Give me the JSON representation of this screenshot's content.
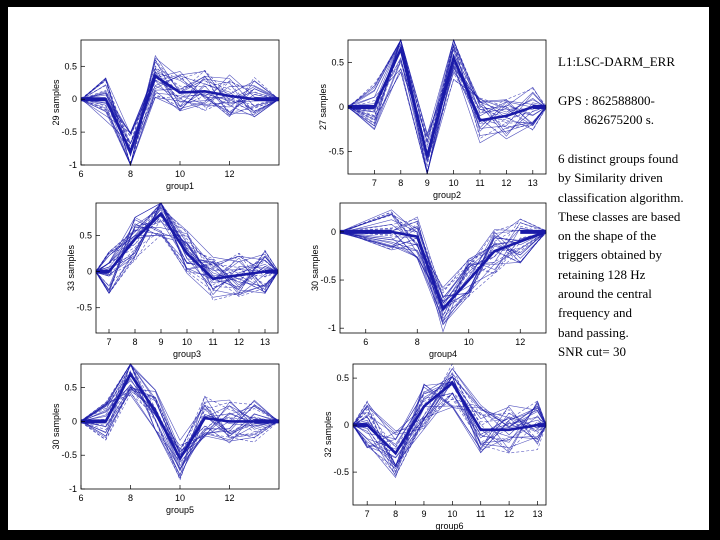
{
  "text": {
    "title": "L1:LSC-DARM_ERR",
    "gps": "GPS : 862588800-\n        862675200 s.",
    "description": "6 distinct groups found\nby Similarity driven\nclassification algorithm.\nThese classes are based\non the shape of the\ntriggers obtained by\nretaining 128 Hz\naround the central\nfrequency and\nband passing.\nSNR cut= 30"
  },
  "colors": {
    "line": "#1a1aa8",
    "background": "#ffffff",
    "frame": "#000000"
  },
  "chart_data": [
    {
      "type": "line",
      "xlabel": "group1",
      "ylabel": "29 samples",
      "xlim": [
        6,
        14
      ],
      "ylim": [
        -1,
        0.9
      ],
      "xticks": [
        6,
        8,
        10,
        12
      ],
      "yticks": [
        -1,
        -0.5,
        0,
        0.5
      ],
      "series_count": 29,
      "mean": [
        [
          6,
          0
        ],
        [
          7,
          0
        ],
        [
          8,
          -0.8
        ],
        [
          9,
          0.35
        ],
        [
          10,
          0.1
        ],
        [
          11,
          0.12
        ],
        [
          12,
          0.05
        ],
        [
          13,
          0
        ],
        [
          14,
          0
        ]
      ]
    },
    {
      "type": "line",
      "xlabel": "group2",
      "ylabel": "27 samples",
      "xlim": [
        6,
        13.5
      ],
      "ylim": [
        -0.75,
        0.75
      ],
      "xticks": [
        7,
        8,
        9,
        10,
        11,
        12,
        13
      ],
      "yticks": [
        -0.5,
        0,
        0.5
      ],
      "series_count": 27,
      "mean": [
        [
          6,
          0
        ],
        [
          7,
          0
        ],
        [
          8,
          0.65
        ],
        [
          9,
          -0.55
        ],
        [
          10,
          0.55
        ],
        [
          11,
          -0.15
        ],
        [
          12,
          -0.1
        ],
        [
          13,
          0
        ],
        [
          13.5,
          0
        ]
      ]
    },
    {
      "type": "line",
      "xlabel": "group3",
      "ylabel": "33 samples",
      "xlim": [
        6.5,
        13.5
      ],
      "ylim": [
        -0.85,
        0.95
      ],
      "xticks": [
        7,
        8,
        9,
        10,
        11,
        12,
        13
      ],
      "yticks": [
        -0.5,
        0,
        0.5
      ],
      "series_count": 33,
      "mean": [
        [
          6.5,
          0
        ],
        [
          7,
          0
        ],
        [
          8,
          0.45
        ],
        [
          9,
          0.8
        ],
        [
          10,
          0.25
        ],
        [
          11,
          -0.1
        ],
        [
          12,
          -0.05
        ],
        [
          13,
          0
        ],
        [
          13.5,
          0
        ]
      ]
    },
    {
      "type": "line",
      "xlabel": "group4",
      "ylabel": "30 samples",
      "xlim": [
        5,
        13
      ],
      "ylim": [
        -1.05,
        0.3
      ],
      "xticks": [
        6,
        8,
        10,
        12
      ],
      "yticks": [
        -1,
        -0.5,
        0
      ],
      "series_count": 30,
      "mean": [
        [
          5,
          0
        ],
        [
          7,
          0
        ],
        [
          8,
          -0.05
        ],
        [
          9,
          -0.8
        ],
        [
          10,
          -0.5
        ],
        [
          11,
          -0.2
        ],
        [
          12,
          -0.1
        ],
        [
          13,
          0
        ]
      ]
    },
    {
      "type": "line",
      "xlabel": "group5",
      "ylabel": "30 samples",
      "xlim": [
        6,
        14
      ],
      "ylim": [
        -1,
        0.85
      ],
      "xticks": [
        6,
        8,
        10,
        12
      ],
      "yticks": [
        -1,
        -0.5,
        0,
        0.5
      ],
      "series_count": 30,
      "mean": [
        [
          6,
          0
        ],
        [
          7,
          0
        ],
        [
          8,
          0.7
        ],
        [
          9,
          0.15
        ],
        [
          10,
          -0.55
        ],
        [
          11,
          0.05
        ],
        [
          12,
          0
        ],
        [
          13,
          0
        ],
        [
          14,
          0
        ]
      ]
    },
    {
      "type": "line",
      "xlabel": "group6",
      "ylabel": "32 samples",
      "xlim": [
        6.5,
        13.3
      ],
      "ylim": [
        -0.85,
        0.65
      ],
      "xticks": [
        7,
        8,
        9,
        10,
        11,
        12,
        13
      ],
      "yticks": [
        -0.5,
        0,
        0.5
      ],
      "series_count": 32,
      "mean": [
        [
          6.5,
          0
        ],
        [
          7,
          0
        ],
        [
          8,
          -0.3
        ],
        [
          9,
          0.2
        ],
        [
          10,
          0.45
        ],
        [
          11,
          -0.05
        ],
        [
          12,
          -0.05
        ],
        [
          13,
          0
        ],
        [
          13.3,
          0
        ]
      ]
    }
  ]
}
